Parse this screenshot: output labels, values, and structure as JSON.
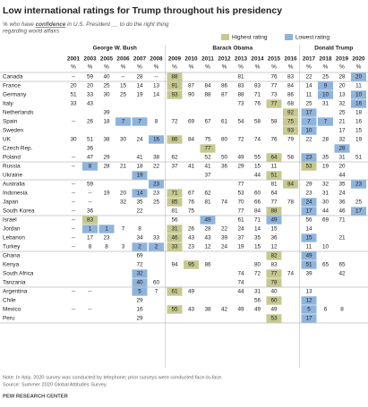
{
  "header": {
    "title": "Low international ratings for Trump throughout his presidency",
    "subtitle": [
      "% who have ",
      "confidence",
      " in U.S. President __ to do the right thing",
      "regarding world affairs"
    ]
  },
  "legend": {
    "highest": "Highest rating",
    "lowest": "Lowest rating",
    "highest_color": "#c6c98f",
    "lowest_color": "#8fb4dc"
  },
  "presidents": [
    {
      "name": "George W. Bush",
      "years": [
        2001,
        2003,
        2005,
        2006,
        2007,
        2008
      ]
    },
    {
      "name": "Barack Obama",
      "years": [
        2009,
        2010,
        2011,
        2012,
        2013,
        2014,
        2015,
        2016
      ]
    },
    {
      "name": "Donald Trump",
      "years": [
        2017,
        2018,
        2019,
        2020
      ]
    }
  ],
  "percent_sign": "%",
  "table": {
    "regions": [
      [
        {
          "country": "Canada",
          "values": [
            "--",
            59,
            40,
            "--",
            28,
            "--",
            88,
            null,
            null,
            null,
            81,
            null,
            76,
            83,
            22,
            25,
            28,
            20
          ],
          "highest": [
            2009
          ],
          "lowest": [
            2020
          ]
        }
      ],
      [
        {
          "country": "France",
          "values": [
            20,
            20,
            25,
            15,
            14,
            13,
            91,
            87,
            84,
            86,
            83,
            83,
            77,
            84,
            14,
            9,
            20,
            11
          ],
          "highest": [
            2009
          ],
          "lowest": [
            2018
          ]
        },
        {
          "country": "Germany",
          "values": [
            51,
            33,
            30,
            25,
            19,
            14,
            93,
            90,
            88,
            87,
            88,
            71,
            73,
            86,
            11,
            10,
            13,
            10
          ],
          "highest": [
            2009
          ],
          "lowest": [
            2018,
            2020
          ]
        },
        {
          "country": "Italy",
          "values": [
            33,
            43,
            null,
            null,
            null,
            null,
            null,
            null,
            null,
            null,
            73,
            76,
            77,
            68,
            25,
            31,
            32,
            16
          ],
          "highest": [
            2015
          ],
          "lowest": [
            2020
          ]
        },
        {
          "country": "Netherlands",
          "values": [
            null,
            null,
            39,
            null,
            null,
            null,
            null,
            null,
            null,
            null,
            null,
            null,
            null,
            92,
            17,
            null,
            25,
            18
          ],
          "highest": [
            2016
          ],
          "lowest": [
            2017
          ]
        },
        {
          "country": "Spain",
          "values": [
            "--",
            26,
            18,
            7,
            7,
            8,
            72,
            69,
            67,
            61,
            54,
            58,
            58,
            75,
            7,
            7,
            21,
            16
          ],
          "highest": [
            2016
          ],
          "lowest": [
            2006,
            2007,
            2017,
            2018
          ]
        },
        {
          "country": "Sweden",
          "values": [
            null,
            null,
            null,
            null,
            null,
            null,
            null,
            null,
            null,
            null,
            null,
            null,
            null,
            93,
            10,
            null,
            17,
            15
          ],
          "highest": [
            2016
          ],
          "lowest": [
            2017
          ]
        },
        {
          "country": "UK",
          "values": [
            30,
            51,
            38,
            30,
            24,
            16,
            86,
            84,
            75,
            80,
            72,
            74,
            76,
            79,
            22,
            28,
            32,
            19
          ],
          "highest": [
            2009
          ],
          "lowest": [
            2008
          ]
        },
        {
          "country": "Czech Rep.",
          "values": [
            null,
            36,
            null,
            null,
            null,
            null,
            null,
            null,
            77,
            null,
            null,
            null,
            null,
            null,
            null,
            null,
            28,
            null
          ],
          "highest": [
            2011
          ],
          "lowest": [
            2019
          ]
        },
        {
          "country": "Poland",
          "values": [
            "--",
            47,
            29,
            null,
            41,
            38,
            62,
            null,
            52,
            50,
            49,
            55,
            64,
            58,
            23,
            35,
            31,
            51
          ],
          "highest": [
            2015
          ],
          "lowest": [
            2017
          ]
        }
      ],
      [
        {
          "country": "Russia",
          "values": [
            "--",
            8,
            28,
            21,
            18,
            22,
            37,
            41,
            41,
            36,
            29,
            15,
            11,
            null,
            53,
            19,
            20,
            null
          ],
          "highest": [
            2017
          ],
          "lowest": [
            2003
          ]
        },
        {
          "country": "Ukraine",
          "values": [
            null,
            null,
            null,
            null,
            19,
            null,
            null,
            null,
            37,
            null,
            null,
            44,
            51,
            null,
            null,
            null,
            44,
            null
          ],
          "highest": [
            2015
          ],
          "lowest": [
            2007
          ]
        }
      ],
      [
        {
          "country": "Australia",
          "values": [
            "--",
            59,
            null,
            null,
            null,
            23,
            null,
            null,
            null,
            null,
            77,
            null,
            81,
            84,
            29,
            32,
            35,
            23
          ],
          "highest": [
            2016
          ],
          "lowest": [
            2008,
            2020
          ]
        },
        {
          "country": "Indonesia",
          "values": [
            "--",
            "--",
            19,
            20,
            14,
            23,
            71,
            67,
            62,
            null,
            53,
            60,
            64,
            null,
            23,
            31,
            24,
            null
          ],
          "highest": [
            2009
          ],
          "lowest": [
            2007
          ]
        },
        {
          "country": "Japan",
          "values": [
            "--",
            "--",
            null,
            32,
            35,
            25,
            85,
            76,
            81,
            74,
            70,
            66,
            77,
            78,
            24,
            30,
            36,
            25
          ],
          "highest": [
            2009
          ],
          "lowest": [
            2017
          ]
        },
        {
          "country": "South Korea",
          "values": [
            "--",
            36,
            null,
            null,
            22,
            null,
            81,
            75,
            null,
            null,
            77,
            84,
            88,
            null,
            17,
            44,
            46,
            17
          ],
          "highest": [
            2015
          ],
          "lowest": [
            2017,
            2020
          ]
        }
      ],
      [
        {
          "country": "Israel",
          "values": [
            "--",
            83,
            null,
            null,
            null,
            null,
            56,
            null,
            49,
            null,
            61,
            71,
            49,
            null,
            56,
            69,
            71,
            null
          ],
          "highest": [
            2003
          ],
          "lowest": [
            2011,
            2015
          ]
        },
        {
          "country": "Jordan",
          "values": [
            "--",
            1,
            1,
            7,
            8,
            null,
            31,
            26,
            28,
            22,
            24,
            14,
            15,
            null,
            14,
            null,
            null,
            null
          ],
          "highest": [
            2009
          ],
          "lowest": [
            2003,
            2005
          ]
        },
        {
          "country": "Lebanon",
          "values": [
            "--",
            17,
            23,
            null,
            34,
            33,
            46,
            43,
            43,
            39,
            37,
            35,
            36,
            null,
            15,
            null,
            21,
            null
          ],
          "highest": [
            2009
          ],
          "lowest": [
            2017
          ]
        },
        {
          "country": "Turkey",
          "values": [
            "--",
            8,
            8,
            3,
            2,
            2,
            33,
            23,
            12,
            24,
            19,
            15,
            12,
            null,
            11,
            10,
            null,
            null
          ],
          "highest": [
            2009
          ],
          "lowest": [
            2007,
            2008
          ]
        }
      ],
      [
        {
          "country": "Ghana",
          "values": [
            null,
            null,
            null,
            null,
            69,
            null,
            null,
            null,
            null,
            null,
            null,
            null,
            82,
            null,
            49,
            null,
            null,
            null
          ],
          "highest": [
            2015
          ],
          "lowest": [
            2017
          ]
        },
        {
          "country": "Kenya",
          "values": [
            null,
            null,
            null,
            null,
            72,
            null,
            94,
            95,
            86,
            null,
            null,
            80,
            83,
            null,
            51,
            65,
            65,
            null
          ],
          "highest": [
            2010
          ],
          "lowest": [
            2017
          ]
        },
        {
          "country": "South Africa",
          "values": [
            null,
            null,
            null,
            null,
            32,
            null,
            null,
            null,
            null,
            null,
            74,
            72,
            77,
            74,
            39,
            null,
            42,
            null
          ],
          "highest": [
            2015
          ],
          "lowest": [
            2007
          ]
        },
        {
          "country": "Tanzania",
          "values": [
            null,
            null,
            null,
            null,
            40,
            60,
            null,
            null,
            null,
            null,
            74,
            null,
            78,
            null,
            null,
            null,
            null,
            null
          ],
          "highest": [
            2015
          ],
          "lowest": [
            2007
          ]
        }
      ],
      [
        {
          "country": "Argentina",
          "values": [
            "--",
            "--",
            null,
            null,
            5,
            7,
            61,
            49,
            null,
            null,
            44,
            31,
            40,
            null,
            13,
            null,
            null,
            null
          ],
          "highest": [
            2009
          ],
          "lowest": [
            2007
          ]
        },
        {
          "country": "Chile",
          "values": [
            null,
            null,
            null,
            null,
            29,
            null,
            null,
            null,
            null,
            null,
            null,
            56,
            60,
            null,
            12,
            null,
            null,
            null
          ],
          "highest": [
            2015
          ],
          "lowest": [
            2017
          ]
        },
        {
          "country": "Mexico",
          "values": [
            "--",
            "--",
            null,
            null,
            16,
            null,
            55,
            43,
            38,
            42,
            49,
            49,
            49,
            null,
            5,
            6,
            8,
            null
          ],
          "highest": [
            2009
          ],
          "lowest": [
            2017
          ]
        },
        {
          "country": "Peru",
          "values": [
            null,
            null,
            null,
            null,
            29,
            null,
            null,
            null,
            null,
            null,
            null,
            null,
            53,
            null,
            17,
            null,
            null,
            null
          ],
          "highest": [
            2015
          ],
          "lowest": [
            2017
          ]
        }
      ]
    ]
  },
  "notes": [
    "Note: In Italy, 2020 survey was conducted by telephone; prior surveys were conducted face-to-face.",
    "Source: Summer 2020 Global Attitudes Survey."
  ],
  "source": "PEW RESEARCH CENTER"
}
